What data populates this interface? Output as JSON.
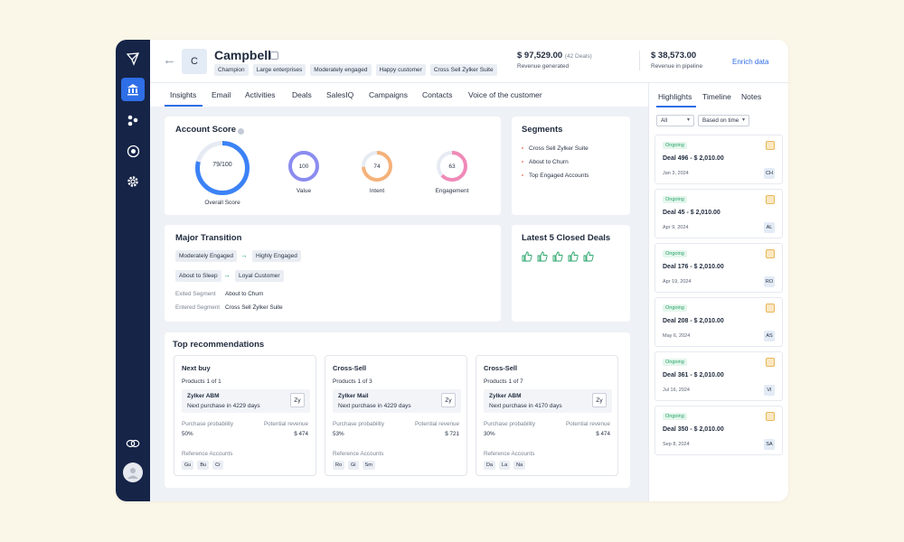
{
  "header": {
    "avatar_initial": "C",
    "account_name": "Campbell",
    "tags": [
      "Champion",
      "Large enterprises",
      "Moderately engaged",
      "Happy customer",
      "Cross Sell Zylker Suite"
    ],
    "revenue_generated": {
      "value": "$ 97,529.00",
      "deals": "(42 Deals)",
      "label": "Revenue generated"
    },
    "revenue_pipeline": {
      "value": "$ 38,573.00",
      "label": "Revenue in pipeline"
    },
    "enrich_label": "Enrich data"
  },
  "tabs": [
    "Insights",
    "Email",
    "Activities",
    "Deals",
    "SalesIQ",
    "Campaigns",
    "Contacts",
    "Voice of the customer"
  ],
  "account_score": {
    "title": "Account Score",
    "overall": {
      "value": "79/100",
      "label": "Overall Score",
      "fraction": 0.79,
      "color": "#3b82f6"
    },
    "gauges": [
      {
        "value": "100",
        "label": "Value",
        "fraction": 1.0,
        "color": "#8b8cf0"
      },
      {
        "value": "74",
        "label": "Intent",
        "fraction": 0.74,
        "color": "#f5b27a"
      },
      {
        "value": "63",
        "label": "Engagement",
        "fraction": 0.63,
        "color": "#f08ab8"
      }
    ]
  },
  "segments": {
    "title": "Segments",
    "items": [
      "Cross Sell Zylker Suite",
      "About to Churn",
      "Top Engaged Accounts"
    ]
  },
  "major_transition": {
    "title": "Major Transition",
    "transitions": [
      {
        "from": "Moderately Engaged",
        "to": "Highly Engaged"
      },
      {
        "from": "About to Sleep",
        "to": "Loyal Customer"
      }
    ],
    "exited_label": "Exited Segment",
    "exited_value": "About to Churn",
    "entered_label": "Entered Segment",
    "entered_value": "Cross Sell Zylker Suite"
  },
  "closed_deals": {
    "title": "Latest 5 Closed Deals",
    "count": 5
  },
  "recommendations": {
    "title": "Top recommendations",
    "cards": [
      {
        "title": "Next buy",
        "products": "Products 1 of 1",
        "product_name": "Zylker ABM",
        "next_purchase": "Next purchase in 4229 days",
        "logo": "Zy",
        "prob_label": "Purchase probability",
        "prob": "50%",
        "rev_label": "Potential revenue",
        "rev": "$ 474",
        "refs_label": "Reference Accounts",
        "refs": [
          "Gu",
          "Bu",
          "Cr"
        ]
      },
      {
        "title": "Cross-Sell",
        "products": "Products 1 of 3",
        "product_name": "Zylker Mail",
        "next_purchase": "Next purchase in 4229 days",
        "logo": "Zy",
        "prob_label": "Purchase probability",
        "prob": "53%",
        "rev_label": "Potential revenue",
        "rev": "$ 721",
        "refs_label": "Reference Accounts",
        "refs": [
          "Ro",
          "Gi",
          "Sm"
        ]
      },
      {
        "title": "Cross-Sell",
        "products": "Products 1 of 7",
        "product_name": "Zylker ABM",
        "next_purchase": "Next purchase in 4170 days",
        "logo": "Zy",
        "prob_label": "Purchase probability",
        "prob": "30%",
        "rev_label": "Potential revenue",
        "rev": "$ 474",
        "refs_label": "Reference Accounts",
        "refs": [
          "Da",
          "La",
          "Na"
        ]
      }
    ]
  },
  "side": {
    "tabs": [
      "Highlights",
      "Timeline",
      "Notes"
    ],
    "filter_all": "All",
    "filter_time": "Based on time",
    "deals": [
      {
        "status": "Ongoing",
        "title": "Deal 496 - $ 2,010.00",
        "date": "Jan 3, 2024",
        "initials": "CH"
      },
      {
        "status": "Ongoing",
        "title": "Deal 45 - $ 2,010.00",
        "date": "Apr 9, 2024",
        "initials": "AL"
      },
      {
        "status": "Ongoing",
        "title": "Deal 176 - $ 2,010.00",
        "date": "Apr 19, 2024",
        "initials": "RO"
      },
      {
        "status": "Ongoing",
        "title": "Deal 208 - $ 2,010.00",
        "date": "May 6, 2024",
        "initials": "AS"
      },
      {
        "status": "Ongoing",
        "title": "Deal 361 - $ 2,010.00",
        "date": "Jul 16, 2024",
        "initials": "VI"
      },
      {
        "status": "Ongoing",
        "title": "Deal 350 - $ 2,010.00",
        "date": "Sep 8, 2024",
        "initials": "SA"
      }
    ]
  }
}
